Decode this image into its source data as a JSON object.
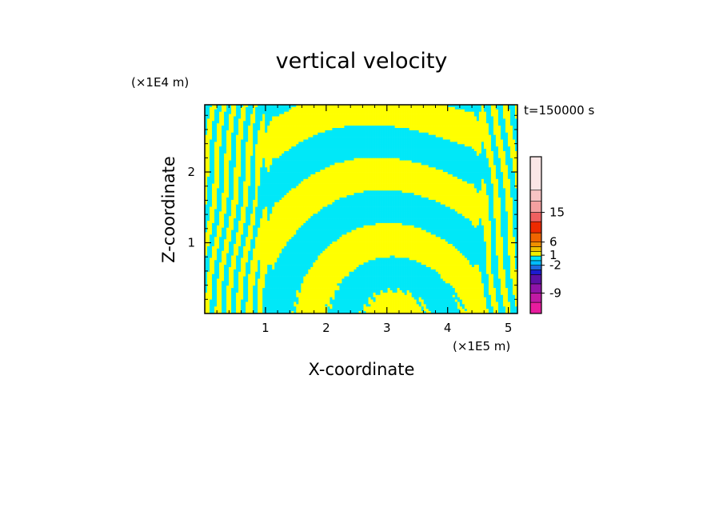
{
  "chart_data": {
    "type": "heatmap",
    "title": "vertical velocity",
    "xlabel": "X-coordinate",
    "ylabel": "Z-coordinate",
    "x_unit": "(×1E5 m)",
    "y_unit": "(×1E4 m)",
    "time_label": "t=150000 s",
    "xlim": [
      0,
      5.15
    ],
    "ylim": [
      0,
      2.95
    ],
    "x_ticks": [
      1,
      2,
      3,
      4,
      5
    ],
    "y_ticks": [
      1,
      2
    ],
    "grid": false,
    "legend": "colorbar-right",
    "colorbar": {
      "levels": [
        "-9",
        "-2",
        "1",
        "6",
        "15"
      ],
      "level_values": [
        -9,
        -2,
        1,
        6,
        15
      ],
      "colors_bottom_to_top": [
        "#e81c9e",
        "#c01aa4",
        "#9014a8",
        "#5c10a6",
        "#1b1bd0",
        "#1e6be0",
        "#00bcff",
        "#00e6f6",
        "#f0f000",
        "#f0c000",
        "#f09000",
        "#f06400",
        "#ee2a00",
        "#f06060",
        "#f4a0a0",
        "#f8c4c4",
        "#fbe6e6"
      ]
    },
    "colors": {
      "positive": "#ffff00",
      "negative": "#00e8f8"
    }
  }
}
